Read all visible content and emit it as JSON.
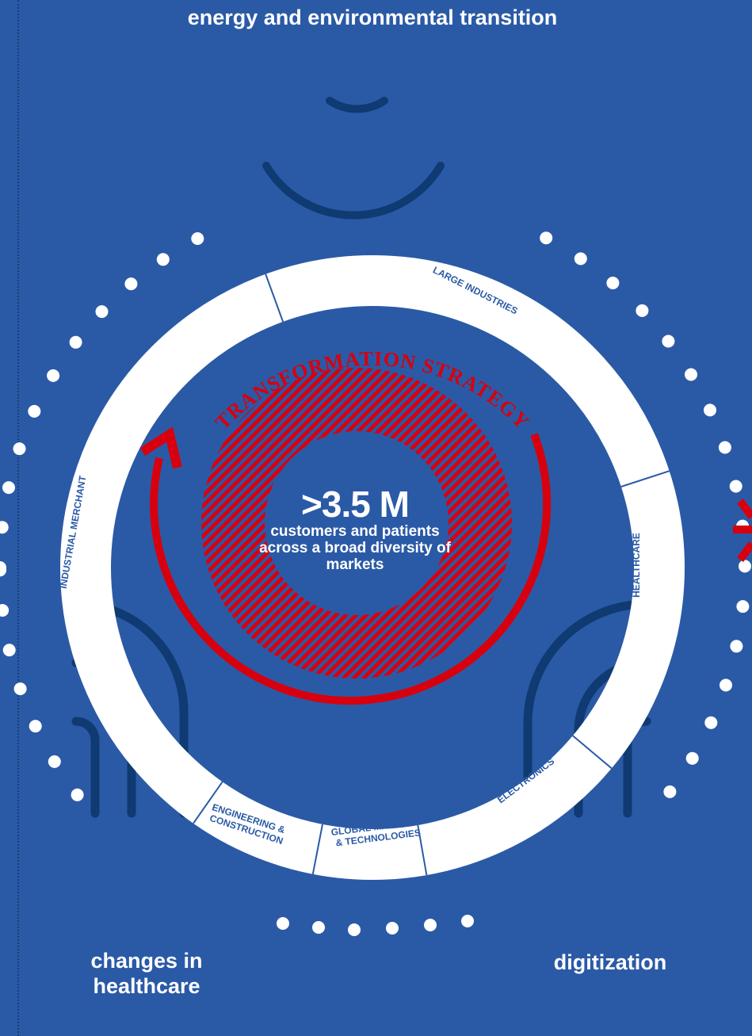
{
  "trends": {
    "top": "energy and environmental transition",
    "bottom_left": "changes in healthcare",
    "bottom_right": "digitization"
  },
  "ring_segments": [
    "LARGE INDUSTRIES",
    "HEALTHCARE",
    "ELECTRONICS",
    "GLOBAL MARKETS & TECHNOLOGIES",
    "ENGINEERING & CONSTRUCTION",
    "INDUSTRIAL MERCHANT"
  ],
  "strategy_label": "TRANSFORMATION STRATEGY",
  "center": {
    "value": ">3.5 M",
    "description": "customers and patients across a broad diversity of markets"
  },
  "colors": {
    "background": "#2a5aa6",
    "ring": "#ffffff",
    "accent_red": "#d7000f",
    "dark_blue": "#0f3a72"
  }
}
